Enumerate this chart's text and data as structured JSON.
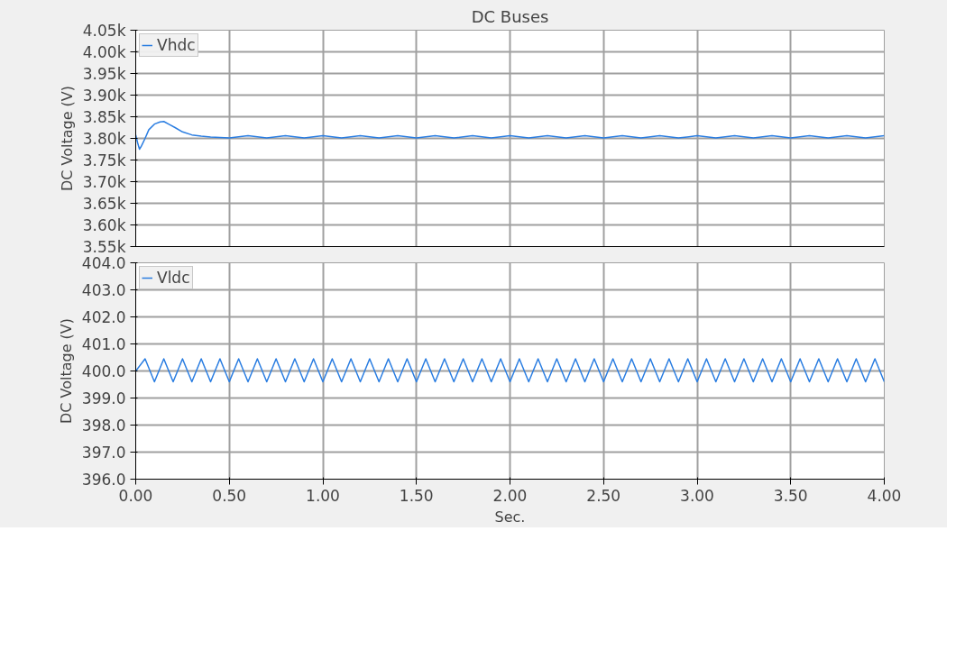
{
  "chart_data": [
    {
      "type": "line",
      "title": "DC Buses",
      "ylabel": "DC Voltage (V)",
      "legend": "top left",
      "grid": true,
      "tick_labels": "y",
      "marker": "none",
      "line_style": "solid",
      "xlim": [
        0,
        4
      ],
      "xticks": [
        {
          "value": 0,
          "label": null
        },
        {
          "value": 0.5,
          "label": null
        },
        {
          "value": 1,
          "label": null
        },
        {
          "value": 1.5,
          "label": null
        },
        {
          "value": 2,
          "label": null
        },
        {
          "value": 2.5,
          "label": null
        },
        {
          "value": 3,
          "label": null
        },
        {
          "value": 3.5,
          "label": null
        },
        {
          "value": 4,
          "label": null
        }
      ],
      "ylim": [
        3550,
        4050
      ],
      "yticks": [
        {
          "value": 3550,
          "label": "3.55k"
        },
        {
          "value": 3600,
          "label": "3.60k"
        },
        {
          "value": 3650,
          "label": "3.65k"
        },
        {
          "value": 3700,
          "label": "3.70k"
        },
        {
          "value": 3750,
          "label": "3.75k"
        },
        {
          "value": 3800,
          "label": "3.80k"
        },
        {
          "value": 3850,
          "label": "3.85k"
        },
        {
          "value": 3900,
          "label": "3.90k"
        },
        {
          "value": 3950,
          "label": "3.95k"
        },
        {
          "value": 4000,
          "label": "4.00k"
        },
        {
          "value": 4050,
          "label": "4.05k"
        }
      ],
      "series": [
        {
          "name": "Vhdc",
          "color": "#2a7de1",
          "x": [
            0,
            0.01,
            0.02,
            0.03,
            0.05,
            0.07,
            0.1,
            0.13,
            0.15,
            0.18,
            0.21,
            0.25,
            0.3,
            0.35,
            0.4,
            0.5,
            0.6,
            0.7,
            0.8,
            0.9,
            1.0,
            1.1,
            1.2,
            1.3,
            1.4,
            1.5,
            1.6,
            1.7,
            1.8,
            1.9,
            2.0,
            2.1,
            2.2,
            2.3,
            2.4,
            2.5,
            2.6,
            2.7,
            2.8,
            2.9,
            3.0,
            3.1,
            3.2,
            3.3,
            3.4,
            3.5,
            3.6,
            3.7,
            3.8,
            3.9,
            4.0
          ],
          "values": [
            3808,
            3790,
            3775,
            3782,
            3800,
            3820,
            3833,
            3838,
            3839,
            3832,
            3825,
            3815,
            3808,
            3805,
            3803,
            3801,
            3806,
            3801,
            3806,
            3801,
            3806,
            3801,
            3806,
            3801,
            3806,
            3801,
            3806,
            3801,
            3806,
            3801,
            3806,
            3801,
            3806,
            3801,
            3806,
            3801,
            3806,
            3801,
            3806,
            3801,
            3806,
            3801,
            3806,
            3801,
            3806,
            3801,
            3806,
            3801,
            3806,
            3801,
            3806
          ]
        }
      ]
    },
    {
      "type": "line",
      "xlabel": "Sec.",
      "ylabel": "DC Voltage (V)",
      "legend": "top left",
      "grid": true,
      "marker": "none",
      "line_style": "solid",
      "xlim": [
        0,
        4
      ],
      "xticks": [
        {
          "value": 0,
          "label": "0.00"
        },
        {
          "value": 0.5,
          "label": "0.50"
        },
        {
          "value": 1,
          "label": "1.00"
        },
        {
          "value": 1.5,
          "label": "1.50"
        },
        {
          "value": 2,
          "label": "2.00"
        },
        {
          "value": 2.5,
          "label": "2.50"
        },
        {
          "value": 3,
          "label": "3.00"
        },
        {
          "value": 3.5,
          "label": "3.50"
        },
        {
          "value": 4,
          "label": "4.00"
        }
      ],
      "ylim": [
        396,
        404
      ],
      "yticks": [
        {
          "value": 396,
          "label": "396.0"
        },
        {
          "value": 397,
          "label": "397.0"
        },
        {
          "value": 398,
          "label": "398.0"
        },
        {
          "value": 399,
          "label": "399.0"
        },
        {
          "value": 400,
          "label": "400.0"
        },
        {
          "value": 401,
          "label": "401.0"
        },
        {
          "value": 402,
          "label": "402.0"
        },
        {
          "value": 403,
          "label": "403.0"
        },
        {
          "value": 404,
          "label": "404.0"
        }
      ],
      "series": [
        {
          "name": "Vldc",
          "color": "#2a7de1",
          "x": [
            0,
            0.05,
            0.1,
            0.15,
            0.2,
            0.25,
            0.3,
            0.35,
            0.4,
            0.45,
            0.5,
            0.55,
            0.6,
            0.65,
            0.7,
            0.75,
            0.8,
            0.85,
            0.9,
            0.95,
            1.0,
            1.05,
            1.1,
            1.15,
            1.2,
            1.25,
            1.3,
            1.35,
            1.4,
            1.45,
            1.5,
            1.55,
            1.6,
            1.65,
            1.7,
            1.75,
            1.8,
            1.85,
            1.9,
            1.95,
            2.0,
            2.05,
            2.1,
            2.15,
            2.2,
            2.25,
            2.3,
            2.35,
            2.4,
            2.45,
            2.5,
            2.55,
            2.6,
            2.65,
            2.7,
            2.75,
            2.8,
            2.85,
            2.9,
            2.95,
            3.0,
            3.05,
            3.1,
            3.15,
            3.2,
            3.25,
            3.3,
            3.35,
            3.4,
            3.45,
            3.5,
            3.55,
            3.6,
            3.65,
            3.7,
            3.75,
            3.8,
            3.85,
            3.9,
            3.95,
            4.0
          ],
          "values": [
            400.0,
            400.45,
            399.6,
            400.45,
            399.6,
            400.45,
            399.6,
            400.45,
            399.6,
            400.45,
            399.6,
            400.45,
            399.6,
            400.45,
            399.6,
            400.45,
            399.6,
            400.45,
            399.6,
            400.45,
            399.6,
            400.45,
            399.6,
            400.45,
            399.6,
            400.45,
            399.6,
            400.45,
            399.6,
            400.45,
            399.6,
            400.45,
            399.6,
            400.45,
            399.6,
            400.45,
            399.6,
            400.45,
            399.6,
            400.45,
            399.6,
            400.45,
            399.6,
            400.45,
            399.6,
            400.45,
            399.6,
            400.45,
            399.6,
            400.45,
            399.6,
            400.45,
            399.6,
            400.45,
            399.6,
            400.45,
            399.6,
            400.45,
            399.6,
            400.45,
            399.6,
            400.45,
            399.6,
            400.45,
            399.6,
            400.45,
            399.6,
            400.45,
            399.6,
            400.45,
            399.6,
            400.45,
            399.6,
            400.45,
            399.6,
            400.45,
            399.6,
            400.45,
            399.6,
            400.45,
            399.6
          ]
        }
      ]
    }
  ]
}
